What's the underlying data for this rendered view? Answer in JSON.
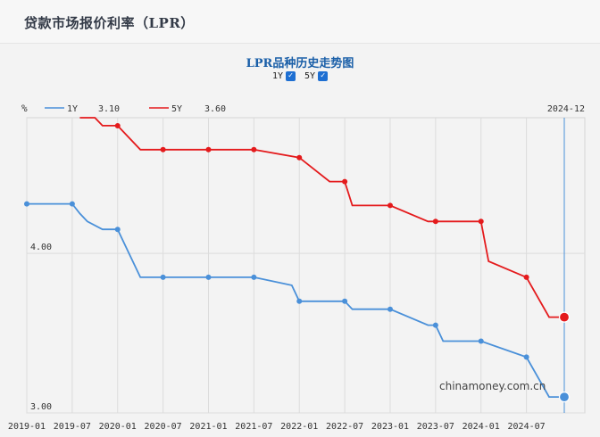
{
  "page": {
    "title": "贷款市场报价利率（LPR）"
  },
  "toggles": [
    {
      "label": "1Y",
      "checked": true
    },
    {
      "label": "5Y",
      "checked": true
    }
  ],
  "legend": {
    "unit": "%",
    "cursor_date": "2024-12",
    "items": [
      {
        "label": "1Y",
        "value": "3.10",
        "color": "#4a90d9"
      },
      {
        "label": "5Y",
        "value": "3.60",
        "color": "#e41a1c"
      }
    ]
  },
  "watermark": "chinamoney.com.cn",
  "chart_data": {
    "type": "line",
    "title": "LPR品种历史走势图",
    "unit": "%",
    "x_range": [
      "2019-01",
      "2024-12"
    ],
    "ylim": [
      3.0,
      4.85
    ],
    "y_ticks": [
      "4.00",
      "3.00"
    ],
    "x_ticks": [
      "2019-01",
      "2019-07",
      "2020-01",
      "2020-07",
      "2021-01",
      "2021-07",
      "2022-01",
      "2022-07",
      "2023-01",
      "2023-07",
      "2024-01",
      "2024-07"
    ],
    "cursor": "2024-12",
    "series": [
      {
        "name": "1Y",
        "color": "#4a90d9",
        "points": [
          [
            "2019-01",
            4.31
          ],
          [
            "2019-07",
            4.31
          ],
          [
            "2019-08",
            4.25
          ],
          [
            "2019-09",
            4.2
          ],
          [
            "2019-11",
            4.15
          ],
          [
            "2020-01",
            4.15
          ],
          [
            "2020-02",
            4.05
          ],
          [
            "2020-04",
            3.85
          ],
          [
            "2020-07",
            3.85
          ],
          [
            "2021-01",
            3.85
          ],
          [
            "2021-07",
            3.85
          ],
          [
            "2021-12",
            3.8
          ],
          [
            "2022-01",
            3.7
          ],
          [
            "2022-07",
            3.7
          ],
          [
            "2022-08",
            3.65
          ],
          [
            "2023-01",
            3.65
          ],
          [
            "2023-06",
            3.55
          ],
          [
            "2023-07",
            3.55
          ],
          [
            "2023-08",
            3.45
          ],
          [
            "2024-01",
            3.45
          ],
          [
            "2024-07",
            3.35
          ],
          [
            "2024-10",
            3.1
          ],
          [
            "2024-12",
            3.1
          ]
        ]
      },
      {
        "name": "5Y",
        "color": "#e41a1c",
        "points": [
          [
            "2019-08",
            4.85
          ],
          [
            "2019-10",
            4.85
          ],
          [
            "2019-11",
            4.8
          ],
          [
            "2020-01",
            4.8
          ],
          [
            "2020-02",
            4.75
          ],
          [
            "2020-04",
            4.65
          ],
          [
            "2020-07",
            4.65
          ],
          [
            "2021-01",
            4.65
          ],
          [
            "2021-07",
            4.65
          ],
          [
            "2022-01",
            4.6
          ],
          [
            "2022-05",
            4.45
          ],
          [
            "2022-07",
            4.45
          ],
          [
            "2022-08",
            4.3
          ],
          [
            "2023-01",
            4.3
          ],
          [
            "2023-06",
            4.2
          ],
          [
            "2023-07",
            4.2
          ],
          [
            "2024-01",
            4.2
          ],
          [
            "2024-02",
            3.95
          ],
          [
            "2024-07",
            3.85
          ],
          [
            "2024-10",
            3.6
          ],
          [
            "2024-12",
            3.6
          ]
        ]
      }
    ],
    "markers": {
      "1Y": [
        "2019-01",
        "2019-07",
        "2020-01",
        "2020-07",
        "2021-01",
        "2021-07",
        "2022-01",
        "2022-07",
        "2023-01",
        "2023-07",
        "2024-01",
        "2024-07"
      ],
      "5Y": [
        "2020-01",
        "2020-07",
        "2021-01",
        "2021-07",
        "2022-01",
        "2022-07",
        "2023-01",
        "2023-07",
        "2024-01",
        "2024-07"
      ]
    }
  }
}
